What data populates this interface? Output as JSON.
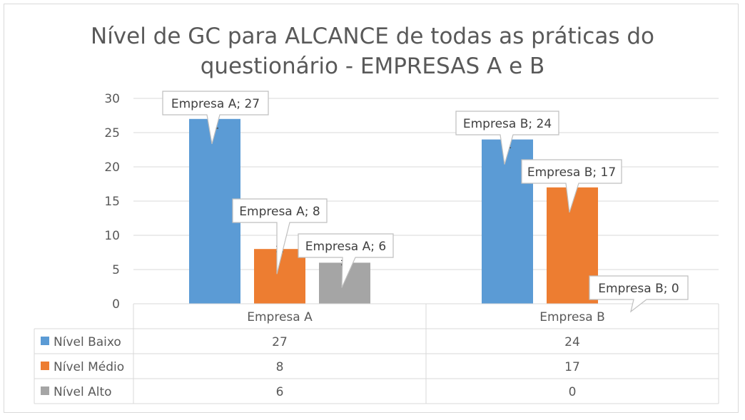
{
  "chart_data": {
    "type": "bar",
    "title": "Nível de GC para ALCANCE de todas as práticas do questionário - EMPRESAS A e B",
    "categories": [
      "Empresa A",
      "Empresa B"
    ],
    "series": [
      {
        "name": "Nível Baixo",
        "values": [
          27,
          24
        ],
        "color": "#5b9bd5"
      },
      {
        "name": "Nível Médio",
        "values": [
          8,
          17
        ],
        "color": "#ed7d31"
      },
      {
        "name": "Nível Alto",
        "values": [
          6,
          0
        ],
        "color": "#a5a5a5"
      }
    ],
    "data_labels": [
      [
        "Empresa A; 27",
        "Empresa B; 24"
      ],
      [
        "Empresa A; 8",
        "Empresa B; 17"
      ],
      [
        "Empresa A; 6",
        "Empresa B; 0"
      ]
    ],
    "ylim": [
      0,
      30
    ],
    "yticks": [
      0,
      5,
      10,
      15,
      20,
      25,
      30
    ],
    "error_bars": true,
    "data_table": true,
    "grid": true,
    "legend": "data-table"
  }
}
